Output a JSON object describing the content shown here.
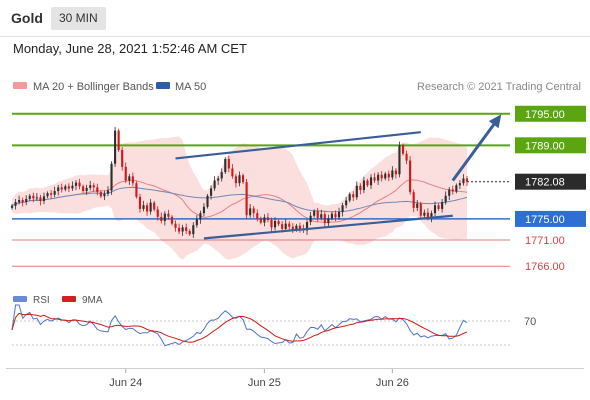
{
  "header": {
    "title": "Gold",
    "timeframe": "30 MIN",
    "datetime": "Monday, June 28, 2021 1:52:46 AM CET"
  },
  "colors": {
    "up": "#2e2e2e",
    "down": "#d01818",
    "band": "#f7b7b7",
    "ma20": "#e88080",
    "ma50": "#7088b8",
    "resistance": "#5aa510",
    "support": "#2d6fd3",
    "target": "#d84545",
    "channel": "#3a5f96",
    "current": "#2b2b2b",
    "rsi": "#4f73c8",
    "rsi_ma": "#cc1a1a"
  },
  "chart_data": [
    {
      "type": "candlestick",
      "legend": [
        {
          "label": "MA 20 + Bollinger Bands",
          "color": "#f29a9a"
        },
        {
          "label": "MA 50",
          "color": "#2d5da8"
        }
      ],
      "credit": "Research © 2021 Trading Central",
      "y_axis": {
        "min": 1763,
        "max": 1798
      },
      "x_ticks": [
        {
          "label": "Jun 24",
          "index": 32
        },
        {
          "label": "Jun 25",
          "index": 71
        },
        {
          "label": "Jun 26",
          "index": 107
        }
      ],
      "levels": [
        {
          "value": 1795.0,
          "label": "1795.00",
          "kind": "resistance"
        },
        {
          "value": 1789.0,
          "label": "1789.00",
          "kind": "resistance"
        },
        {
          "value": 1782.08,
          "label": "1782.08",
          "kind": "current"
        },
        {
          "value": 1775.0,
          "label": "1775.00",
          "kind": "support"
        },
        {
          "value": 1771.0,
          "label": "1771.00",
          "kind": "target"
        },
        {
          "value": 1766.0,
          "label": "1766.00",
          "kind": "target"
        }
      ],
      "channel": {
        "upper": [
          {
            "index": 46,
            "price": 1786.5
          },
          {
            "index": 115,
            "price": 1791.5
          }
        ],
        "lower": [
          {
            "index": 54,
            "price": 1771.3
          },
          {
            "index": 124,
            "price": 1775.6
          }
        ]
      },
      "projection": {
        "from": {
          "index": 124,
          "price": 1782.3
        },
        "to": {
          "index": 137,
          "price": 1794.3
        }
      },
      "close": [
        1777.5,
        1778.2,
        1778.6,
        1778.2,
        1778.8,
        1779.4,
        1778.9,
        1779.1,
        1778.4,
        1779.3,
        1779.9,
        1779.6,
        1780.3,
        1781.0,
        1780.6,
        1781.2,
        1780.8,
        1781.3,
        1781.9,
        1781.2,
        1780.3,
        1780.9,
        1781.4,
        1781.0,
        1780.1,
        1779.3,
        1779.8,
        1780.4,
        1785.5,
        1791.8,
        1788.1,
        1784.9,
        1782.3,
        1783.1,
        1781.8,
        1779.2,
        1776.9,
        1777.6,
        1776.4,
        1778.1,
        1776.8,
        1775.4,
        1774.6,
        1776.0,
        1775.4,
        1774.1,
        1773.3,
        1772.6,
        1773.4,
        1772.7,
        1772.1,
        1773.8,
        1774.9,
        1776.1,
        1777.3,
        1779.4,
        1780.8,
        1782.3,
        1782.7,
        1783.9,
        1786.4,
        1784.6,
        1783.1,
        1781.8,
        1783.3,
        1782.0,
        1775.7,
        1777.0,
        1776.1,
        1775.1,
        1774.3,
        1775.3,
        1774.8,
        1773.4,
        1774.6,
        1774.0,
        1773.1,
        1774.1,
        1773.5,
        1772.9,
        1773.7,
        1773.1,
        1772.8,
        1774.4,
        1775.6,
        1776.5,
        1775.2,
        1775.9,
        1774.2,
        1775.1,
        1776.0,
        1775.3,
        1776.3,
        1777.6,
        1778.5,
        1779.7,
        1779.1,
        1781.3,
        1780.5,
        1782.3,
        1781.4,
        1782.9,
        1782.3,
        1783.4,
        1782.7,
        1783.6,
        1782.9,
        1784.2,
        1783.5,
        1789.0,
        1787.4,
        1786.1,
        1780.1,
        1777.1,
        1777.9,
        1775.6,
        1776.2,
        1775.2,
        1776.1,
        1777.6,
        1776.9,
        1778.2,
        1779.4,
        1780.6,
        1780.2,
        1781.4,
        1781.8,
        1782.7,
        1782.1
      ],
      "indicator": {
        "legend": [
          {
            "label": "RSI",
            "color": "#6a8ad8"
          },
          {
            "label": "9MA",
            "color": "#d32020"
          }
        ],
        "level_label": "70"
      }
    }
  ]
}
